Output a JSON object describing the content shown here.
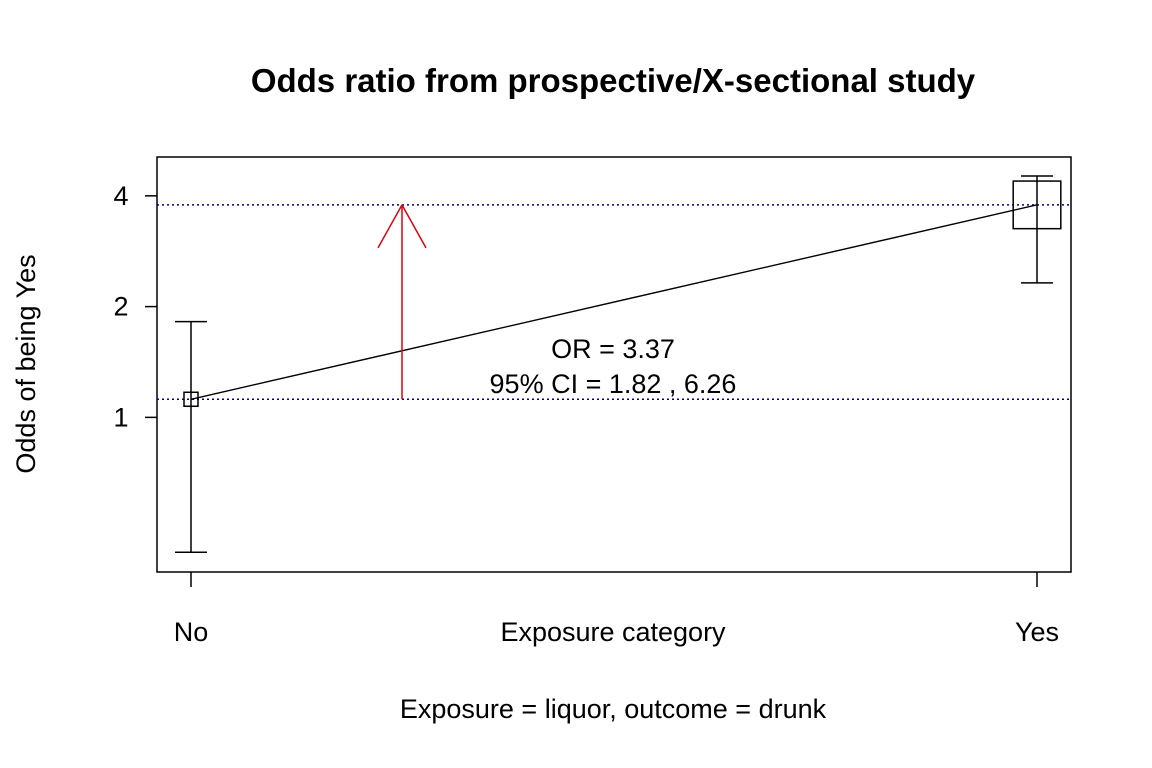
{
  "chart_data": {
    "type": "scatter",
    "title": "Odds ratio from prospective/X-sectional study",
    "xlabel": "Exposure category",
    "ylabel": "Odds of being Yes",
    "subtitle": "Exposure = liquor, outcome = drunk",
    "y_scale": "log",
    "ylim": [
      0.38,
      5.1
    ],
    "y_ticks": [
      1,
      2,
      4
    ],
    "y_tick_labels": [
      "1",
      "2",
      "4"
    ],
    "categories": [
      "No",
      "Yes"
    ],
    "points": [
      {
        "category": "No",
        "odds": 1.12,
        "ci_lower": 0.43,
        "ci_upper": 1.82,
        "box_weight": 1
      },
      {
        "category": "Yes",
        "odds": 3.78,
        "ci_lower": 2.32,
        "ci_upper": 4.53,
        "box_weight": 3.4
      }
    ],
    "reference_lines": [
      1.12,
      3.78
    ],
    "arrow": {
      "from": 1.12,
      "to": 3.78,
      "color": "#e0000f"
    },
    "annotation": {
      "or_label": "OR =  3.37",
      "ci_label": "95% CI = 1.82 , 6.26"
    },
    "colors": {
      "reference_line": "#00008b",
      "arrow": "#e0000f",
      "marks": "#000000"
    }
  }
}
